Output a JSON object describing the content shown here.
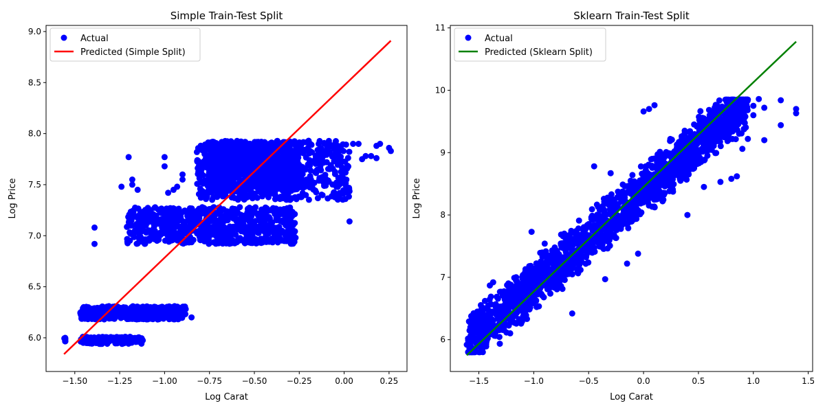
{
  "chart_data": [
    {
      "type": "scatter",
      "title": "Simple Train-Test Split",
      "xlabel": "Log Carat",
      "ylabel": "Log Price",
      "xlim": [
        -1.66,
        0.35
      ],
      "ylim": [
        5.67,
        9.06
      ],
      "xticks": [
        -1.5,
        -1.25,
        -1.0,
        -0.75,
        -0.5,
        -0.25,
        0.0,
        0.25
      ],
      "xtick_labels": [
        "−1.50",
        "−1.25",
        "−1.00",
        "−0.75",
        "−0.50",
        "−0.25",
        "0.00",
        "0.25"
      ],
      "yticks": [
        6.0,
        6.5,
        7.0,
        7.5,
        8.0,
        8.5,
        9.0
      ],
      "ytick_labels": [
        "6.0",
        "6.5",
        "7.0",
        "7.5",
        "8.0",
        "8.5",
        "9.0"
      ],
      "grid": false,
      "legend_position": "upper-left",
      "series": [
        {
          "name": "Actual",
          "kind": "scatter",
          "color": "#0000ff",
          "clusters": [
            {
              "x": [
                -1.56,
                -1.55
              ],
              "y": [
                5.95,
                6.0
              ]
            },
            {
              "x": [
                -1.47,
                -1.12
              ],
              "y": [
                5.94,
                6.01
              ]
            },
            {
              "x": [
                -1.47,
                -0.88
              ],
              "y": [
                6.18,
                6.31
              ]
            },
            {
              "x": [
                -1.21,
                -0.27
              ],
              "y": [
                6.92,
                7.28
              ]
            },
            {
              "x": [
                -0.82,
                0.03
              ],
              "y": [
                7.35,
                7.93
              ]
            },
            {
              "x": [
                -0.75,
                -0.25
              ],
              "y": [
                7.45,
                7.92
              ]
            }
          ],
          "points": [
            {
              "x": -1.39,
              "y": 7.08
            },
            {
              "x": -1.39,
              "y": 6.92
            },
            {
              "x": -1.24,
              "y": 7.48
            },
            {
              "x": -1.2,
              "y": 7.77
            },
            {
              "x": -1.18,
              "y": 7.55
            },
            {
              "x": -1.18,
              "y": 7.5
            },
            {
              "x": -1.15,
              "y": 7.45
            },
            {
              "x": -1.0,
              "y": 7.77
            },
            {
              "x": -1.0,
              "y": 7.68
            },
            {
              "x": -0.98,
              "y": 7.42
            },
            {
              "x": -0.95,
              "y": 7.45
            },
            {
              "x": -0.93,
              "y": 7.48
            },
            {
              "x": -0.9,
              "y": 7.6
            },
            {
              "x": -0.9,
              "y": 7.55
            },
            {
              "x": -0.85,
              "y": 6.2
            },
            {
              "x": -0.82,
              "y": 7.82
            },
            {
              "x": 0.03,
              "y": 7.14
            },
            {
              "x": 0.05,
              "y": 7.9
            },
            {
              "x": 0.08,
              "y": 7.9
            },
            {
              "x": 0.1,
              "y": 7.75
            },
            {
              "x": 0.12,
              "y": 7.78
            },
            {
              "x": 0.15,
              "y": 7.78
            },
            {
              "x": 0.18,
              "y": 7.88
            },
            {
              "x": 0.2,
              "y": 7.9
            },
            {
              "x": 0.25,
              "y": 7.86
            },
            {
              "x": 0.26,
              "y": 7.83
            },
            {
              "x": 0.18,
              "y": 7.76
            }
          ]
        },
        {
          "name": "Predicted (Simple Split)",
          "kind": "line",
          "color": "#ff0000",
          "x": [
            -1.56,
            0.26
          ],
          "y": [
            5.84,
            8.91
          ]
        }
      ]
    },
    {
      "type": "scatter",
      "title": "Sklearn Train-Test Split",
      "xlabel": "Log Carat",
      "ylabel": "Log Price",
      "xlim": [
        -1.76,
        1.54
      ],
      "ylim": [
        5.49,
        11.04
      ],
      "xticks": [
        -1.5,
        -1.0,
        -0.5,
        0.0,
        0.5,
        1.0,
        1.5
      ],
      "xtick_labels": [
        "−1.5",
        "−1.0",
        "−0.5",
        "0.0",
        "0.5",
        "1.0",
        "1.5"
      ],
      "yticks": [
        6,
        7,
        8,
        9,
        10,
        11
      ],
      "ytick_labels": [
        "6",
        "7",
        "8",
        "9",
        "10",
        "11"
      ],
      "grid": false,
      "legend_position": "upper-left",
      "series": [
        {
          "name": "Actual",
          "kind": "scatter",
          "color": "#0000ff",
          "band": {
            "x": [
              -1.6,
              0.95
            ],
            "center": [
              5.95,
              9.85
            ],
            "spread": 0.48,
            "ymin": 5.8,
            "ymax": 9.85
          },
          "points": [
            {
              "x": -1.61,
              "y": 5.92
            },
            {
              "x": -1.57,
              "y": 5.8
            },
            {
              "x": -1.4,
              "y": 6.87
            },
            {
              "x": -1.37,
              "y": 6.92
            },
            {
              "x": -1.02,
              "y": 7.73
            },
            {
              "x": -0.9,
              "y": 7.54
            },
            {
              "x": -0.65,
              "y": 6.42
            },
            {
              "x": -0.45,
              "y": 8.78
            },
            {
              "x": -0.35,
              "y": 6.97
            },
            {
              "x": -0.3,
              "y": 8.67
            },
            {
              "x": -0.15,
              "y": 7.22
            },
            {
              "x": -0.05,
              "y": 7.38
            },
            {
              "x": 0.0,
              "y": 9.66
            },
            {
              "x": 0.05,
              "y": 9.7
            },
            {
              "x": 0.1,
              "y": 9.76
            },
            {
              "x": 0.4,
              "y": 8.0
            },
            {
              "x": 0.55,
              "y": 8.45
            },
            {
              "x": 0.7,
              "y": 8.53
            },
            {
              "x": 0.8,
              "y": 8.58
            },
            {
              "x": 0.85,
              "y": 8.62
            },
            {
              "x": 0.9,
              "y": 9.06
            },
            {
              "x": 1.0,
              "y": 9.6
            },
            {
              "x": 1.05,
              "y": 9.86
            },
            {
              "x": 1.1,
              "y": 9.72
            },
            {
              "x": 1.1,
              "y": 9.2
            },
            {
              "x": 1.25,
              "y": 9.84
            },
            {
              "x": 1.25,
              "y": 9.44
            },
            {
              "x": 1.39,
              "y": 9.7
            },
            {
              "x": 1.39,
              "y": 9.63
            },
            {
              "x": 0.92,
              "y": 9.48
            },
            {
              "x": 0.95,
              "y": 9.22
            },
            {
              "x": 1.0,
              "y": 9.75
            }
          ]
        },
        {
          "name": "Predicted (Sklearn Split)",
          "kind": "line",
          "color": "#008000",
          "x": [
            -1.61,
            1.39
          ],
          "y": [
            5.75,
            10.78
          ]
        }
      ]
    }
  ]
}
